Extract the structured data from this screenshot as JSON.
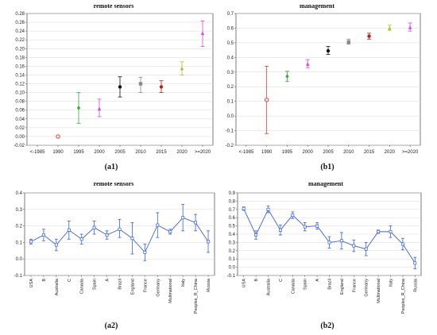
{
  "captions": [
    "(a1)",
    "(b1)",
    "(a2)",
    "(b2)"
  ],
  "chart_data": [
    {
      "type": "scatter",
      "title": "remote sensors",
      "categories": [
        "<-1985",
        "1990",
        "1995",
        "2000",
        "2005",
        "2010",
        "2015",
        "2020",
        ">=2020"
      ],
      "ylim": [
        -0.02,
        0.28
      ],
      "yticks": [
        -0.02,
        0.0,
        0.02,
        0.04,
        0.06,
        0.08,
        0.1,
        0.12,
        0.14,
        0.16,
        0.18,
        0.2,
        0.22,
        0.24,
        0.26,
        0.28
      ],
      "ytick_labels": [
        "-0.02",
        "0.00",
        "0.02",
        "0.04",
        "0.06",
        "0.08",
        "0.10",
        "0.12",
        "0.14",
        "0.16",
        "0.18",
        "0.20",
        "0.22",
        "0.24",
        "0.26",
        "0.28"
      ],
      "points": [
        {
          "x": "1990",
          "mean": 0.0,
          "lo": 0.0,
          "hi": 0.0,
          "color": "#e8342c",
          "marker": "circle-open"
        },
        {
          "x": "1995",
          "mean": 0.065,
          "lo": 0.03,
          "hi": 0.1,
          "color": "#3aa83a",
          "marker": "diamond"
        },
        {
          "x": "2000",
          "mean": 0.063,
          "lo": 0.045,
          "hi": 0.085,
          "color": "#d84ad8",
          "marker": "triangle"
        },
        {
          "x": "2005",
          "mean": 0.113,
          "lo": 0.09,
          "hi": 0.136,
          "color": "#111111",
          "marker": "circle"
        },
        {
          "x": "2010",
          "mean": 0.12,
          "lo": 0.1,
          "hi": 0.135,
          "color": "#888888",
          "marker": "square"
        },
        {
          "x": "2015",
          "mean": 0.113,
          "lo": 0.1,
          "hi": 0.127,
          "color": "#b8201c",
          "marker": "circle"
        },
        {
          "x": "2020",
          "mean": 0.155,
          "lo": 0.14,
          "hi": 0.17,
          "color": "#a8c82a",
          "marker": "triangle"
        },
        {
          "x": ">=2020",
          "mean": 0.235,
          "lo": 0.205,
          "hi": 0.263,
          "color": "#d84ad8",
          "marker": "triangle"
        }
      ],
      "grid": true
    },
    {
      "type": "scatter",
      "title": "management",
      "categories": [
        "<-1985",
        "1990",
        "1995",
        "2000",
        "2005",
        "2010",
        "2015",
        "2020",
        ">=2020"
      ],
      "ylim": [
        -0.2,
        0.7
      ],
      "yticks": [
        -0.2,
        -0.1,
        0.0,
        0.1,
        0.2,
        0.3,
        0.4,
        0.5,
        0.6,
        0.7
      ],
      "ytick_labels": [
        "-0.2",
        "-0.1",
        "0.0",
        "0.1",
        "0.2",
        "0.3",
        "0.4",
        "0.5",
        "0.6",
        "0.7"
      ],
      "points": [
        {
          "x": "1990",
          "mean": 0.11,
          "lo": -0.12,
          "hi": 0.34,
          "color": "#e8342c",
          "marker": "circle-open"
        },
        {
          "x": "1995",
          "mean": 0.27,
          "lo": 0.235,
          "hi": 0.305,
          "color": "#3aa83a",
          "marker": "diamond"
        },
        {
          "x": "2000",
          "mean": 0.355,
          "lo": 0.33,
          "hi": 0.385,
          "color": "#d84ad8",
          "marker": "triangle"
        },
        {
          "x": "2005",
          "mean": 0.445,
          "lo": 0.42,
          "hi": 0.475,
          "color": "#111111",
          "marker": "circle"
        },
        {
          "x": "2010",
          "mean": 0.505,
          "lo": 0.49,
          "hi": 0.525,
          "color": "#888888",
          "marker": "square"
        },
        {
          "x": "2015",
          "mean": 0.545,
          "lo": 0.525,
          "hi": 0.565,
          "color": "#b8201c",
          "marker": "circle"
        },
        {
          "x": "2020",
          "mean": 0.6,
          "lo": 0.585,
          "hi": 0.62,
          "color": "#a8c82a",
          "marker": "triangle"
        },
        {
          "x": ">=2020",
          "mean": 0.605,
          "lo": 0.58,
          "hi": 0.635,
          "color": "#d84ad8",
          "marker": "triangle"
        }
      ],
      "grid": true
    },
    {
      "type": "line",
      "title": "remote sensors",
      "categories": [
        "USA",
        "B",
        "Australia",
        "C",
        "Canada",
        "Spain",
        "A",
        "Brazil",
        "England",
        "France",
        "Germany",
        "Multinational",
        "Italy",
        "Peoples_R_China",
        "Russia"
      ],
      "ylim": [
        -0.1,
        0.4
      ],
      "yticks": [
        -0.1,
        0.0,
        0.1,
        0.2,
        0.3,
        0.4
      ],
      "ytick_labels": [
        "-0.1",
        "0.0",
        "0.1",
        "0.2",
        "0.3",
        "0.4"
      ],
      "series": [
        {
          "color": "#3a5fe8",
          "values": [
            0.105,
            0.145,
            0.085,
            0.175,
            0.12,
            0.19,
            0.145,
            0.18,
            0.125,
            0.04,
            0.205,
            0.165,
            0.25,
            0.22,
            0.105
          ],
          "lo": [
            0.09,
            0.11,
            0.05,
            0.12,
            0.09,
            0.15,
            0.12,
            0.13,
            0.03,
            -0.01,
            0.13,
            0.15,
            0.17,
            0.17,
            0.04
          ],
          "hi": [
            0.12,
            0.18,
            0.12,
            0.23,
            0.15,
            0.23,
            0.17,
            0.24,
            0.22,
            0.09,
            0.28,
            0.18,
            0.33,
            0.27,
            0.17
          ]
        }
      ],
      "grid": true
    },
    {
      "type": "line",
      "title": "management",
      "categories": [
        "USA",
        "B",
        "Australia",
        "C",
        "Canada",
        "Spain",
        "A",
        "Brazil",
        "England",
        "France",
        "Germany",
        "Multinational",
        "Italy",
        "Peoples_R_China",
        "Russia"
      ],
      "ylim": [
        -0.1,
        0.9
      ],
      "yticks": [
        -0.1,
        0.0,
        0.1,
        0.2,
        0.3,
        0.4,
        0.5,
        0.6,
        0.7,
        0.8,
        0.9
      ],
      "ytick_labels": [
        "-0.1",
        "0.0",
        "0.1",
        "0.2",
        "0.3",
        "0.4",
        "0.5",
        "0.6",
        "0.7",
        "0.8",
        "0.9"
      ],
      "series": [
        {
          "color": "#3a5fe8",
          "values": [
            0.71,
            0.39,
            0.7,
            0.45,
            0.63,
            0.49,
            0.5,
            0.3,
            0.32,
            0.26,
            0.22,
            0.43,
            0.43,
            0.28,
            0.05
          ],
          "lo": [
            0.69,
            0.34,
            0.66,
            0.39,
            0.59,
            0.44,
            0.46,
            0.23,
            0.22,
            0.19,
            0.14,
            0.41,
            0.36,
            0.21,
            -0.02
          ],
          "hi": [
            0.73,
            0.44,
            0.74,
            0.51,
            0.67,
            0.54,
            0.54,
            0.37,
            0.42,
            0.33,
            0.3,
            0.45,
            0.5,
            0.35,
            0.12
          ]
        }
      ],
      "grid": true
    }
  ]
}
